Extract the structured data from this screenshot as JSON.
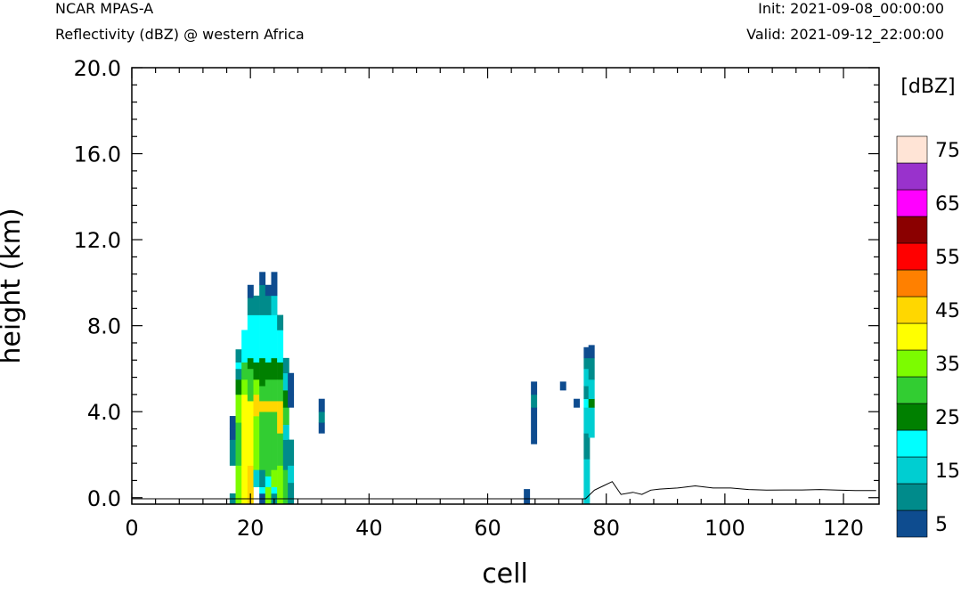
{
  "header": {
    "model": "NCAR MPAS-A",
    "subtitle": "Reflectivity (dBZ) @ western Africa",
    "init": "Init: 2021-09-08_00:00:00",
    "valid": "Valid: 2021-09-12_22:00:00"
  },
  "chart_data": {
    "type": "heatmap",
    "title": "Reflectivity (dBZ) @ western Africa",
    "xlabel": "cell",
    "ylabel": "height (km)",
    "xlim": [
      0,
      126
    ],
    "ylim": [
      -0.3,
      20.0
    ],
    "x_ticks": [
      "0",
      "20",
      "40",
      "60",
      "80",
      "100",
      "120"
    ],
    "y_ticks": [
      "0.0",
      "4.0",
      "8.0",
      "12.0",
      "16.0",
      "20.0"
    ],
    "grid": false,
    "colorbar": {
      "title": "[dBZ]",
      "levels": [
        5,
        10,
        15,
        20,
        25,
        30,
        35,
        40,
        45,
        50,
        55,
        60,
        65,
        70,
        75
      ],
      "labels": [
        "5",
        "15",
        "25",
        "35",
        "45",
        "55",
        "65",
        "75"
      ],
      "colors": [
        "#0e4c8f",
        "#008b8b",
        "#00ced1",
        "#00ffff",
        "#008000",
        "#32cd32",
        "#7cfc00",
        "#ffff00",
        "#ffd700",
        "#ff8000",
        "#ff0000",
        "#8b0000",
        "#ff00ff",
        "#9932cc",
        "#ffe4d6"
      ]
    },
    "cells": [
      {
        "x": 17,
        "y0": -0.3,
        "y1": 0.2,
        "level": 1
      },
      {
        "x": 17,
        "y0": 1.5,
        "y1": 2.7,
        "level": 1
      },
      {
        "x": 17,
        "y0": 2.7,
        "y1": 3.2,
        "level": 0
      },
      {
        "x": 17,
        "y0": 3.2,
        "y1": 3.8,
        "level": 0
      },
      {
        "x": 18,
        "y0": -0.3,
        "y1": 1.5,
        "level": 6
      },
      {
        "x": 18,
        "y0": 1.5,
        "y1": 3.5,
        "level": 5
      },
      {
        "x": 18,
        "y0": 3.5,
        "y1": 4.8,
        "level": 6
      },
      {
        "x": 18,
        "y0": 4.8,
        "y1": 5.5,
        "level": 4
      },
      {
        "x": 18,
        "y0": 5.5,
        "y1": 6.0,
        "level": 1
      },
      {
        "x": 18,
        "y0": 6.0,
        "y1": 6.3,
        "level": 3
      },
      {
        "x": 18,
        "y0": 6.3,
        "y1": 6.5,
        "level": 1
      },
      {
        "x": 18,
        "y0": 6.5,
        "y1": 6.9,
        "level": 1
      },
      {
        "x": 19,
        "y0": -0.3,
        "y1": 4.8,
        "level": 7
      },
      {
        "x": 19,
        "y0": 4.8,
        "y1": 5.5,
        "level": 6
      },
      {
        "x": 19,
        "y0": 5.5,
        "y1": 6.3,
        "level": 5
      },
      {
        "x": 19,
        "y0": 6.3,
        "y1": 7.8,
        "level": 3
      },
      {
        "x": 20,
        "y0": -0.3,
        "y1": 1.5,
        "level": 8
      },
      {
        "x": 20,
        "y0": 1.5,
        "y1": 4.5,
        "level": 7
      },
      {
        "x": 20,
        "y0": 4.5,
        "y1": 6.0,
        "level": 5
      },
      {
        "x": 20,
        "y0": 6.0,
        "y1": 6.5,
        "level": 4
      },
      {
        "x": 20,
        "y0": 6.5,
        "y1": 8.5,
        "level": 3
      },
      {
        "x": 20,
        "y0": 8.5,
        "y1": 9.3,
        "level": 1
      },
      {
        "x": 20,
        "y0": 9.3,
        "y1": 9.9,
        "level": 0
      },
      {
        "x": 21,
        "y0": 0.5,
        "y1": 1.3,
        "level": 2
      },
      {
        "x": 21,
        "y0": 1.3,
        "y1": 3.8,
        "level": 6
      },
      {
        "x": 21,
        "y0": 3.8,
        "y1": 4.8,
        "level": 8
      },
      {
        "x": 21,
        "y0": 4.8,
        "y1": 5.5,
        "level": 6
      },
      {
        "x": 21,
        "y0": 5.5,
        "y1": 6.3,
        "level": 4
      },
      {
        "x": 21,
        "y0": 6.3,
        "y1": 8.5,
        "level": 3
      },
      {
        "x": 21,
        "y0": 8.5,
        "y1": 9.4,
        "level": 1
      },
      {
        "x": 22,
        "y0": -0.3,
        "y1": 0.2,
        "level": 0
      },
      {
        "x": 22,
        "y0": 0.2,
        "y1": 0.5,
        "level": 3
      },
      {
        "x": 22,
        "y0": 0.5,
        "y1": 1.3,
        "level": 1
      },
      {
        "x": 22,
        "y0": 1.3,
        "y1": 4.0,
        "level": 5
      },
      {
        "x": 22,
        "y0": 4.0,
        "y1": 4.5,
        "level": 8
      },
      {
        "x": 22,
        "y0": 4.5,
        "y1": 5.2,
        "level": 5
      },
      {
        "x": 22,
        "y0": 5.2,
        "y1": 6.5,
        "level": 4
      },
      {
        "x": 22,
        "y0": 6.5,
        "y1": 8.5,
        "level": 3
      },
      {
        "x": 22,
        "y0": 8.5,
        "y1": 9.3,
        "level": 1
      },
      {
        "x": 22,
        "y0": 9.3,
        "y1": 9.9,
        "level": 1
      },
      {
        "x": 22,
        "y0": 9.9,
        "y1": 10.5,
        "level": 0
      },
      {
        "x": 23,
        "y0": -0.3,
        "y1": 0.5,
        "level": 6
      },
      {
        "x": 23,
        "y0": 0.5,
        "y1": 1.0,
        "level": 3
      },
      {
        "x": 23,
        "y0": 1.0,
        "y1": 4.0,
        "level": 5
      },
      {
        "x": 23,
        "y0": 4.0,
        "y1": 4.5,
        "level": 8
      },
      {
        "x": 23,
        "y0": 4.5,
        "y1": 5.5,
        "level": 5
      },
      {
        "x": 23,
        "y0": 5.5,
        "y1": 6.3,
        "level": 4
      },
      {
        "x": 23,
        "y0": 6.3,
        "y1": 8.5,
        "level": 3
      },
      {
        "x": 23,
        "y0": 8.5,
        "y1": 9.4,
        "level": 1
      },
      {
        "x": 23,
        "y0": 9.4,
        "y1": 9.9,
        "level": 0
      },
      {
        "x": 24,
        "y0": -0.3,
        "y1": 0.2,
        "level": 1
      },
      {
        "x": 24,
        "y0": 0.2,
        "y1": 0.5,
        "level": 3
      },
      {
        "x": 24,
        "y0": 0.5,
        "y1": 1.3,
        "level": 6
      },
      {
        "x": 24,
        "y0": 1.3,
        "y1": 4.0,
        "level": 5
      },
      {
        "x": 24,
        "y0": 4.0,
        "y1": 4.5,
        "level": 8
      },
      {
        "x": 24,
        "y0": 4.5,
        "y1": 5.5,
        "level": 5
      },
      {
        "x": 24,
        "y0": 5.5,
        "y1": 6.5,
        "level": 4
      },
      {
        "x": 24,
        "y0": 6.5,
        "y1": 8.5,
        "level": 3
      },
      {
        "x": 24,
        "y0": 8.5,
        "y1": 9.4,
        "level": 2
      },
      {
        "x": 24,
        "y0": 9.4,
        "y1": 10.5,
        "level": 0
      },
      {
        "x": 25,
        "y0": -0.3,
        "y1": 1.5,
        "level": 6
      },
      {
        "x": 25,
        "y0": 1.5,
        "y1": 3.0,
        "level": 5
      },
      {
        "x": 25,
        "y0": 3.0,
        "y1": 4.5,
        "level": 8
      },
      {
        "x": 25,
        "y0": 4.5,
        "y1": 5.5,
        "level": 5
      },
      {
        "x": 25,
        "y0": 5.5,
        "y1": 6.3,
        "level": 4
      },
      {
        "x": 25,
        "y0": 6.3,
        "y1": 7.8,
        "level": 3
      },
      {
        "x": 25,
        "y0": 7.8,
        "y1": 8.5,
        "level": 1
      },
      {
        "x": 26,
        "y0": -0.3,
        "y1": 1.3,
        "level": 5
      },
      {
        "x": 26,
        "y0": 1.3,
        "y1": 2.7,
        "level": 1
      },
      {
        "x": 26,
        "y0": 2.7,
        "y1": 3.4,
        "level": 2
      },
      {
        "x": 26,
        "y0": 3.4,
        "y1": 4.2,
        "level": 5
      },
      {
        "x": 26,
        "y0": 4.2,
        "y1": 5.0,
        "level": 4
      },
      {
        "x": 26,
        "y0": 5.0,
        "y1": 5.8,
        "level": 2
      },
      {
        "x": 26,
        "y0": 5.8,
        "y1": 6.5,
        "level": 1
      },
      {
        "x": 26.8,
        "y0": -0.3,
        "y1": 0.7,
        "level": 1
      },
      {
        "x": 26.8,
        "y0": 0.7,
        "y1": 1.5,
        "level": 2
      },
      {
        "x": 26.8,
        "y0": 1.5,
        "y1": 2.7,
        "level": 1
      },
      {
        "x": 26.8,
        "y0": 4.2,
        "y1": 4.8,
        "level": 0
      },
      {
        "x": 26.8,
        "y0": 4.8,
        "y1": 5.8,
        "level": 0
      },
      {
        "x": 32,
        "y0": 3.0,
        "y1": 3.5,
        "level": 0
      },
      {
        "x": 32,
        "y0": 3.5,
        "y1": 4.0,
        "level": 1
      },
      {
        "x": 32,
        "y0": 4.0,
        "y1": 4.6,
        "level": 0
      },
      {
        "x": 66.6,
        "y0": -0.3,
        "y1": 0.4,
        "level": 0
      },
      {
        "x": 67.8,
        "y0": 2.5,
        "y1": 4.2,
        "level": 0
      },
      {
        "x": 67.8,
        "y0": 4.2,
        "y1": 4.8,
        "level": 1
      },
      {
        "x": 67.8,
        "y0": 4.8,
        "y1": 5.4,
        "level": 0
      },
      {
        "x": 72.7,
        "y0": 5.0,
        "y1": 5.4,
        "level": 0
      },
      {
        "x": 75,
        "y0": 4.2,
        "y1": 4.6,
        "level": 0
      },
      {
        "x": 76.7,
        "y0": -0.3,
        "y1": 0.2,
        "level": 2
      },
      {
        "x": 76.7,
        "y0": 0.2,
        "y1": 1.8,
        "level": 2
      },
      {
        "x": 76.7,
        "y0": 1.8,
        "y1": 3.0,
        "level": 1
      },
      {
        "x": 76.7,
        "y0": 3.0,
        "y1": 4.2,
        "level": 2
      },
      {
        "x": 76.7,
        "y0": 4.2,
        "y1": 4.6,
        "level": 3
      },
      {
        "x": 76.7,
        "y0": 4.6,
        "y1": 5.2,
        "level": 1
      },
      {
        "x": 76.7,
        "y0": 5.2,
        "y1": 6.0,
        "level": 2
      },
      {
        "x": 76.7,
        "y0": 6.0,
        "y1": 6.5,
        "level": 1
      },
      {
        "x": 76.7,
        "y0": 6.5,
        "y1": 7.0,
        "level": 0
      },
      {
        "x": 77.5,
        "y0": 2.8,
        "y1": 4.2,
        "level": 2
      },
      {
        "x": 77.5,
        "y0": 4.2,
        "y1": 4.6,
        "level": 4
      },
      {
        "x": 77.5,
        "y0": 4.6,
        "y1": 5.5,
        "level": 2
      },
      {
        "x": 77.5,
        "y0": 5.5,
        "y1": 6.5,
        "level": 1
      },
      {
        "x": 77.5,
        "y0": 6.5,
        "y1": 7.1,
        "level": 0
      }
    ],
    "terrain": {
      "x": [
        0,
        76.5,
        78,
        79.5,
        81,
        82.5,
        84.5,
        86,
        87.5,
        89,
        92,
        95,
        98,
        101,
        104,
        107,
        110,
        113,
        116,
        119,
        122,
        125.5
      ],
      "y": [
        -0.05,
        -0.05,
        0.35,
        0.55,
        0.75,
        0.15,
        0.25,
        0.15,
        0.35,
        0.4,
        0.45,
        0.55,
        0.45,
        0.45,
        0.38,
        0.35,
        0.36,
        0.36,
        0.38,
        0.35,
        0.33,
        0.33
      ]
    }
  }
}
